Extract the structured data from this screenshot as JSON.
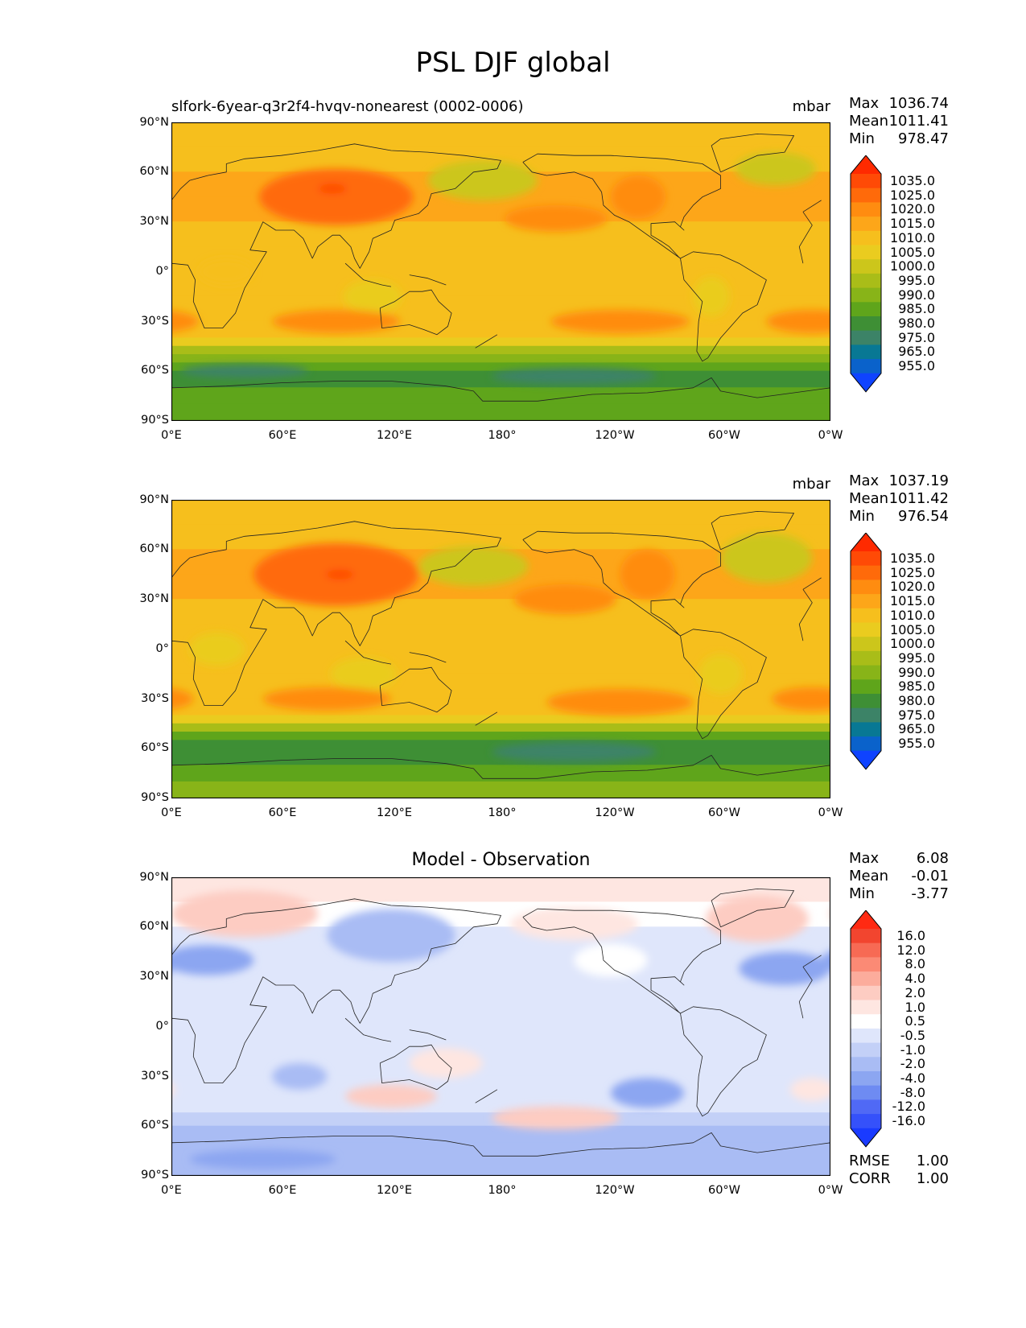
{
  "figure": {
    "title": "PSL DJF global"
  },
  "chart_data": [
    {
      "type": "heatmap",
      "title": "slfork-6year-q3r2f4-hvqv-nonearest (0002-0006)",
      "units": "mbar",
      "stats": {
        "max_label": "Max",
        "max": "1036.74",
        "mean_label": "Mean",
        "mean": "1011.41",
        "min_label": "Min",
        "min": "978.47"
      },
      "xticks": [
        "0°E",
        "60°E",
        "120°E",
        "180°",
        "120°W",
        "60°W",
        "0°W"
      ],
      "yticks": [
        "90°N",
        "60°N",
        "30°N",
        "0°",
        "30°S",
        "60°S",
        "90°S"
      ],
      "colorbar": {
        "levels": [
          "1035.0",
          "1025.0",
          "1020.0",
          "1015.0",
          "1010.0",
          "1005.0",
          "1000.0",
          "995.0",
          "990.0",
          "985.0",
          "980.0",
          "975.0",
          "965.0",
          "955.0"
        ],
        "colors": [
          "#ff2a00",
          "#ff4a06",
          "#ff6a0a",
          "#ff8c10",
          "#fda619",
          "#f6bf1d",
          "#eacc1f",
          "#ccc61b",
          "#a9bd18",
          "#88b418",
          "#5fa51b",
          "#3e8f35",
          "#3c8367",
          "#087894",
          "#0a62cb",
          "#0f43ff"
        ]
      },
      "field": {
        "bands": [
          {
            "lat": 90,
            "v": 1009
          },
          {
            "lat": 75,
            "v": 1012
          },
          {
            "lat": 60,
            "v": 1014
          },
          {
            "lat": 45,
            "v": 1017
          },
          {
            "lat": 30,
            "v": 1016
          },
          {
            "lat": 15,
            "v": 1012
          },
          {
            "lat": 0,
            "v": 1010
          },
          {
            "lat": -15,
            "v": 1012
          },
          {
            "lat": -30,
            "v": 1015
          },
          {
            "lat": -40,
            "v": 1011
          },
          {
            "lat": -45,
            "v": 1004
          },
          {
            "lat": -50,
            "v": 995
          },
          {
            "lat": -55,
            "v": 988
          },
          {
            "lat": -60,
            "v": 983
          },
          {
            "lat": -65,
            "v": 982
          },
          {
            "lat": -70,
            "v": 984
          },
          {
            "lat": -80,
            "v": 987
          },
          {
            "lat": -90,
            "v": 991
          }
        ],
        "blobs": [
          {
            "lon": 90,
            "lat": 45,
            "rlon": 42,
            "rlat": 17,
            "v": 1028
          },
          {
            "lon": 88,
            "lat": 50,
            "rlon": 8,
            "rlat": 3,
            "v": 1036
          },
          {
            "lon": 170,
            "lat": 55,
            "rlon": 30,
            "rlat": 12,
            "v": 1000
          },
          {
            "lon": 330,
            "lat": 62,
            "rlon": 22,
            "rlat": 10,
            "v": 1003
          },
          {
            "lon": 210,
            "lat": 32,
            "rlon": 28,
            "rlat": 8,
            "v": 1021
          },
          {
            "lon": 255,
            "lat": 45,
            "rlon": 15,
            "rlat": 13,
            "v": 1022
          },
          {
            "lon": 110,
            "lat": -15,
            "rlon": 16,
            "rlat": 10,
            "v": 1009
          },
          {
            "lon": 30,
            "lat": 0,
            "rlon": 15,
            "rlat": 8,
            "v": 1010
          },
          {
            "lon": 90,
            "lat": -30,
            "rlon": 35,
            "rlat": 7,
            "v": 1020
          },
          {
            "lon": 245,
            "lat": -30,
            "rlon": 38,
            "rlat": 7,
            "v": 1022
          },
          {
            "lon": 350,
            "lat": -30,
            "rlon": 25,
            "rlat": 7,
            "v": 1020
          },
          {
            "lon": 220,
            "lat": -63,
            "rlon": 45,
            "rlat": 5,
            "v": 978
          },
          {
            "lon": 40,
            "lat": -60,
            "rlon": 35,
            "rlat": 4,
            "v": 979
          },
          {
            "lon": 295,
            "lat": -15,
            "rlon": 10,
            "rlat": 12,
            "v": 1006
          }
        ]
      }
    },
    {
      "type": "heatmap",
      "title": "",
      "units": "mbar",
      "stats": {
        "max_label": "Max",
        "max": "1037.19",
        "mean_label": "Mean",
        "mean": "1011.42",
        "min_label": "Min",
        "min": "976.54"
      },
      "xticks": [
        "0°E",
        "60°E",
        "120°E",
        "180°",
        "120°W",
        "60°W",
        "0°W"
      ],
      "yticks": [
        "90°N",
        "60°N",
        "30°N",
        "0°",
        "30°S",
        "60°S",
        "90°S"
      ],
      "colorbar": {
        "levels": [
          "1035.0",
          "1025.0",
          "1020.0",
          "1015.0",
          "1010.0",
          "1005.0",
          "1000.0",
          "995.0",
          "990.0",
          "985.0",
          "980.0",
          "975.0",
          "965.0",
          "955.0"
        ],
        "colors": [
          "#ff2a00",
          "#ff4a06",
          "#ff6a0a",
          "#ff8c10",
          "#fda619",
          "#f6bf1d",
          "#eacc1f",
          "#ccc61b",
          "#a9bd18",
          "#88b418",
          "#5fa51b",
          "#3e8f35",
          "#3c8367",
          "#087894",
          "#0a62cb",
          "#0f43ff"
        ]
      },
      "field": {
        "bands": [
          {
            "lat": 90,
            "v": 1012
          },
          {
            "lat": 75,
            "v": 1011
          },
          {
            "lat": 60,
            "v": 1013
          },
          {
            "lat": 45,
            "v": 1018
          },
          {
            "lat": 30,
            "v": 1017
          },
          {
            "lat": 15,
            "v": 1012
          },
          {
            "lat": 0,
            "v": 1010
          },
          {
            "lat": -15,
            "v": 1012
          },
          {
            "lat": -30,
            "v": 1016
          },
          {
            "lat": -40,
            "v": 1011
          },
          {
            "lat": -45,
            "v": 1003
          },
          {
            "lat": -50,
            "v": 993
          },
          {
            "lat": -55,
            "v": 985
          },
          {
            "lat": -60,
            "v": 980
          },
          {
            "lat": -65,
            "v": 981
          },
          {
            "lat": -70,
            "v": 983
          },
          {
            "lat": -80,
            "v": 988
          },
          {
            "lat": -90,
            "v": 992
          }
        ],
        "blobs": [
          {
            "lon": 90,
            "lat": 45,
            "rlon": 45,
            "rlat": 19,
            "v": 1030
          },
          {
            "lon": 92,
            "lat": 45,
            "rlon": 8,
            "rlat": 3,
            "v": 1037
          },
          {
            "lon": 165,
            "lat": 50,
            "rlon": 30,
            "rlat": 12,
            "v": 1002
          },
          {
            "lon": 325,
            "lat": 55,
            "rlon": 25,
            "rlat": 15,
            "v": 1004
          },
          {
            "lon": 215,
            "lat": 30,
            "rlon": 28,
            "rlat": 9,
            "v": 1023
          },
          {
            "lon": 260,
            "lat": 45,
            "rlon": 15,
            "rlat": 15,
            "v": 1022
          },
          {
            "lon": 105,
            "lat": -15,
            "rlon": 18,
            "rlat": 10,
            "v": 1009
          },
          {
            "lon": 25,
            "lat": 0,
            "rlon": 15,
            "rlat": 10,
            "v": 1009
          },
          {
            "lon": 85,
            "lat": -30,
            "rlon": 35,
            "rlat": 7,
            "v": 1020
          },
          {
            "lon": 245,
            "lat": -32,
            "rlon": 40,
            "rlat": 8,
            "v": 1024
          },
          {
            "lon": 350,
            "lat": -30,
            "rlon": 22,
            "rlat": 7,
            "v": 1020
          },
          {
            "lon": 220,
            "lat": -62,
            "rlon": 45,
            "rlat": 6,
            "v": 976
          },
          {
            "lon": 300,
            "lat": -15,
            "rlon": 12,
            "rlat": 12,
            "v": 1006
          }
        ]
      }
    },
    {
      "type": "heatmap",
      "title": "Model - Observation",
      "units": "",
      "stats": {
        "max_label": "Max",
        "max": "6.08",
        "mean_label": "Mean",
        "mean": "-0.01",
        "min_label": "Min",
        "min": "-3.77"
      },
      "metrics": {
        "rmse_label": "RMSE",
        "rmse": "1.00",
        "corr_label": "CORR",
        "corr": "1.00"
      },
      "xticks": [
        "0°E",
        "60°E",
        "120°E",
        "180°",
        "120°W",
        "60°W",
        "0°W"
      ],
      "yticks": [
        "90°N",
        "60°N",
        "30°N",
        "0°",
        "30°S",
        "60°S",
        "90°S"
      ],
      "colorbar": {
        "levels": [
          "16.0",
          "12.0",
          "8.0",
          "4.0",
          "2.0",
          "1.0",
          "0.5",
          "-0.5",
          "-1.0",
          "-2.0",
          "-4.0",
          "-8.0",
          "-12.0",
          "-16.0"
        ],
        "colors": [
          "#ff2a12",
          "#f2452f",
          "#f76a54",
          "#fb8a75",
          "#fcac9c",
          "#fdccc2",
          "#fee6e1",
          "#ffffff",
          "#dfe6fb",
          "#c3d0f7",
          "#a9bcf4",
          "#8ca6f1",
          "#6e8bf2",
          "#5069f5",
          "#3551fa",
          "#1a3bff"
        ]
      },
      "field": {
        "bands": [
          {
            "lat": 90,
            "v": 1.2
          },
          {
            "lat": 75,
            "v": 0.8
          },
          {
            "lat": 60,
            "v": 0.3
          },
          {
            "lat": 45,
            "v": -0.2
          },
          {
            "lat": 30,
            "v": 0
          },
          {
            "lat": 0,
            "v": 0
          },
          {
            "lat": -30,
            "v": 0
          },
          {
            "lat": -45,
            "v": 0
          },
          {
            "lat": -52,
            "v": -0.7
          },
          {
            "lat": -60,
            "v": -1.2
          },
          {
            "lat": -70,
            "v": -1.0
          },
          {
            "lat": -80,
            "v": -1.5
          },
          {
            "lat": -90,
            "v": -1.6
          }
        ],
        "blobs": [
          {
            "lon": 40,
            "lat": 68,
            "rlon": 40,
            "rlat": 14,
            "v": 2.5
          },
          {
            "lon": 20,
            "lat": 40,
            "rlon": 25,
            "rlat": 9,
            "v": -2.2
          },
          {
            "lon": 120,
            "lat": 55,
            "rlon": 35,
            "rlat": 16,
            "v": -1.6
          },
          {
            "lon": 320,
            "lat": 65,
            "rlon": 28,
            "rlat": 14,
            "v": 2.8
          },
          {
            "lon": 335,
            "lat": 35,
            "rlon": 25,
            "rlat": 10,
            "v": -2.6
          },
          {
            "lon": 220,
            "lat": 62,
            "rlon": 35,
            "rlat": 10,
            "v": 1.1
          },
          {
            "lon": 240,
            "lat": 40,
            "rlon": 20,
            "rlat": 10,
            "v": 0.8
          },
          {
            "lon": 120,
            "lat": -42,
            "rlon": 25,
            "rlat": 7,
            "v": 2.2
          },
          {
            "lon": 150,
            "lat": -22,
            "rlon": 20,
            "rlat": 9,
            "v": 1.6
          },
          {
            "lon": 210,
            "lat": -55,
            "rlon": 35,
            "rlat": 7,
            "v": 2.6
          },
          {
            "lon": 260,
            "lat": -40,
            "rlon": 20,
            "rlat": 9,
            "v": -2.2
          },
          {
            "lon": 70,
            "lat": -30,
            "rlon": 15,
            "rlat": 8,
            "v": -1.2
          },
          {
            "lon": 350,
            "lat": -38,
            "rlon": 12,
            "rlat": 7,
            "v": 1.2
          },
          {
            "lon": 50,
            "lat": -80,
            "rlon": 40,
            "rlat": 6,
            "v": -2.1
          }
        ]
      }
    }
  ]
}
